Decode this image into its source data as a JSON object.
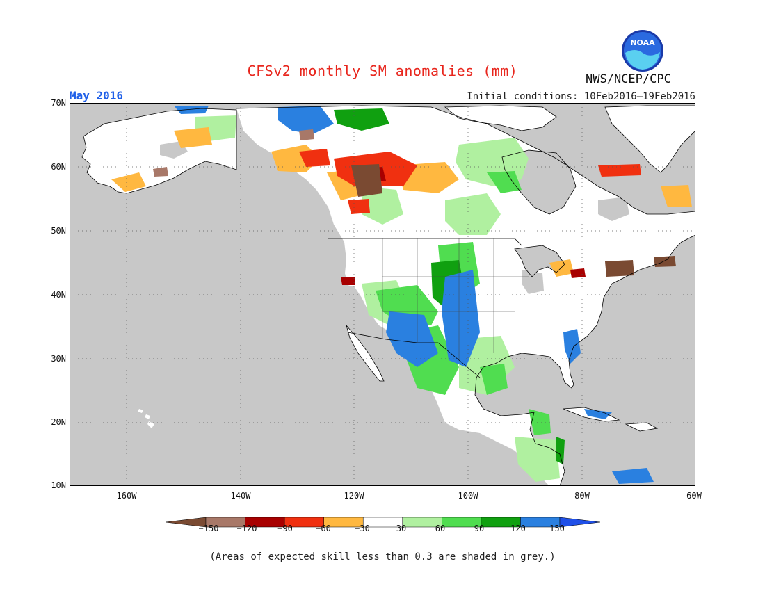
{
  "title": "CFSv2 monthly SM anomalies (mm)",
  "period": "May 2016",
  "initial_conditions": "Initial conditions: 10Feb2016–19Feb2016",
  "agency": "NWS/NCEP/CPC",
  "logo_text": "NOAA",
  "lat_labels": [
    "70N",
    "60N",
    "50N",
    "40N",
    "30N",
    "20N",
    "10N"
  ],
  "lon_labels": [
    "160W",
    "140W",
    "120W",
    "100W",
    "80W",
    "60W"
  ],
  "colorbar": {
    "labels": [
      "−150",
      "−120",
      "−90",
      "−60",
      "−30",
      "30",
      "60",
      "90",
      "120",
      "150"
    ],
    "colors": [
      "#7a4a32",
      "#a87868",
      "#a80000",
      "#f03010",
      "#ffb840",
      "#ffffff",
      "#b0f0a0",
      "#50dd50",
      "#10a010",
      "#2a80e0",
      "#2050e8"
    ]
  },
  "colors": {
    "land": "#ffffff",
    "low_skill_grey": "#c8c8c8",
    "ocean": "#c8c8c8",
    "coast": "#000000"
  },
  "note": "(Areas of expected skill less than 0.3 are shaded in grey.)"
}
